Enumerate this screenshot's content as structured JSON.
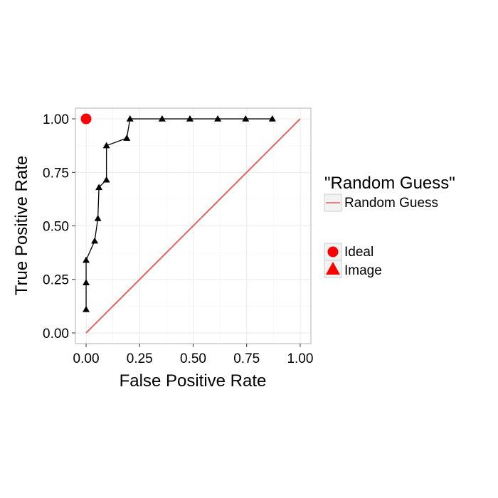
{
  "chart_data": {
    "type": "line",
    "title": "",
    "xlabel": "False Positive Rate",
    "ylabel": "True Positive Rate",
    "xlim": [
      -0.05,
      1.05
    ],
    "ylim": [
      -0.05,
      1.05
    ],
    "x_ticks": [
      "0.00",
      "0.25",
      "0.50",
      "0.75",
      "1.00"
    ],
    "y_ticks": [
      "0.00",
      "0.25",
      "0.50",
      "0.75",
      "1.00"
    ],
    "grid": true,
    "series": [
      {
        "name": "Image",
        "mark": "line+triangle",
        "color": "#000000",
        "points": [
          {
            "x": 0.0,
            "y": 0.11
          },
          {
            "x": 0.0,
            "y": 0.235
          },
          {
            "x": 0.0,
            "y": 0.34
          },
          {
            "x": 0.04,
            "y": 0.43
          },
          {
            "x": 0.055,
            "y": 0.535
          },
          {
            "x": 0.06,
            "y": 0.68
          },
          {
            "x": 0.095,
            "y": 0.715
          },
          {
            "x": 0.095,
            "y": 0.875
          },
          {
            "x": 0.19,
            "y": 0.91
          },
          {
            "x": 0.205,
            "y": 1.0
          },
          {
            "x": 0.355,
            "y": 1.0
          },
          {
            "x": 0.485,
            "y": 1.0
          },
          {
            "x": 0.615,
            "y": 1.0
          },
          {
            "x": 0.745,
            "y": 1.0
          },
          {
            "x": 0.87,
            "y": 1.0
          }
        ]
      },
      {
        "name": "Ideal",
        "mark": "circle",
        "color": "#ff0000",
        "points": [
          {
            "x": 0.0,
            "y": 1.0
          }
        ]
      },
      {
        "name": "Random Guess",
        "mark": "line",
        "color": "#e8605a",
        "points": [
          {
            "x": 0.0,
            "y": 0.0
          },
          {
            "x": 1.0,
            "y": 1.0
          }
        ]
      }
    ],
    "legend": {
      "placement": "right",
      "line_group_title": "\"Random Guess\"",
      "line_group_items": [
        "Random Guess"
      ],
      "marker_group_items": [
        "Ideal",
        "Image"
      ]
    }
  },
  "colors": {
    "panel_border": "#b3b3b3",
    "grid": "#ebebeb",
    "random_line": "#e8605a",
    "ideal": "#ff0000",
    "image": "#000000"
  }
}
